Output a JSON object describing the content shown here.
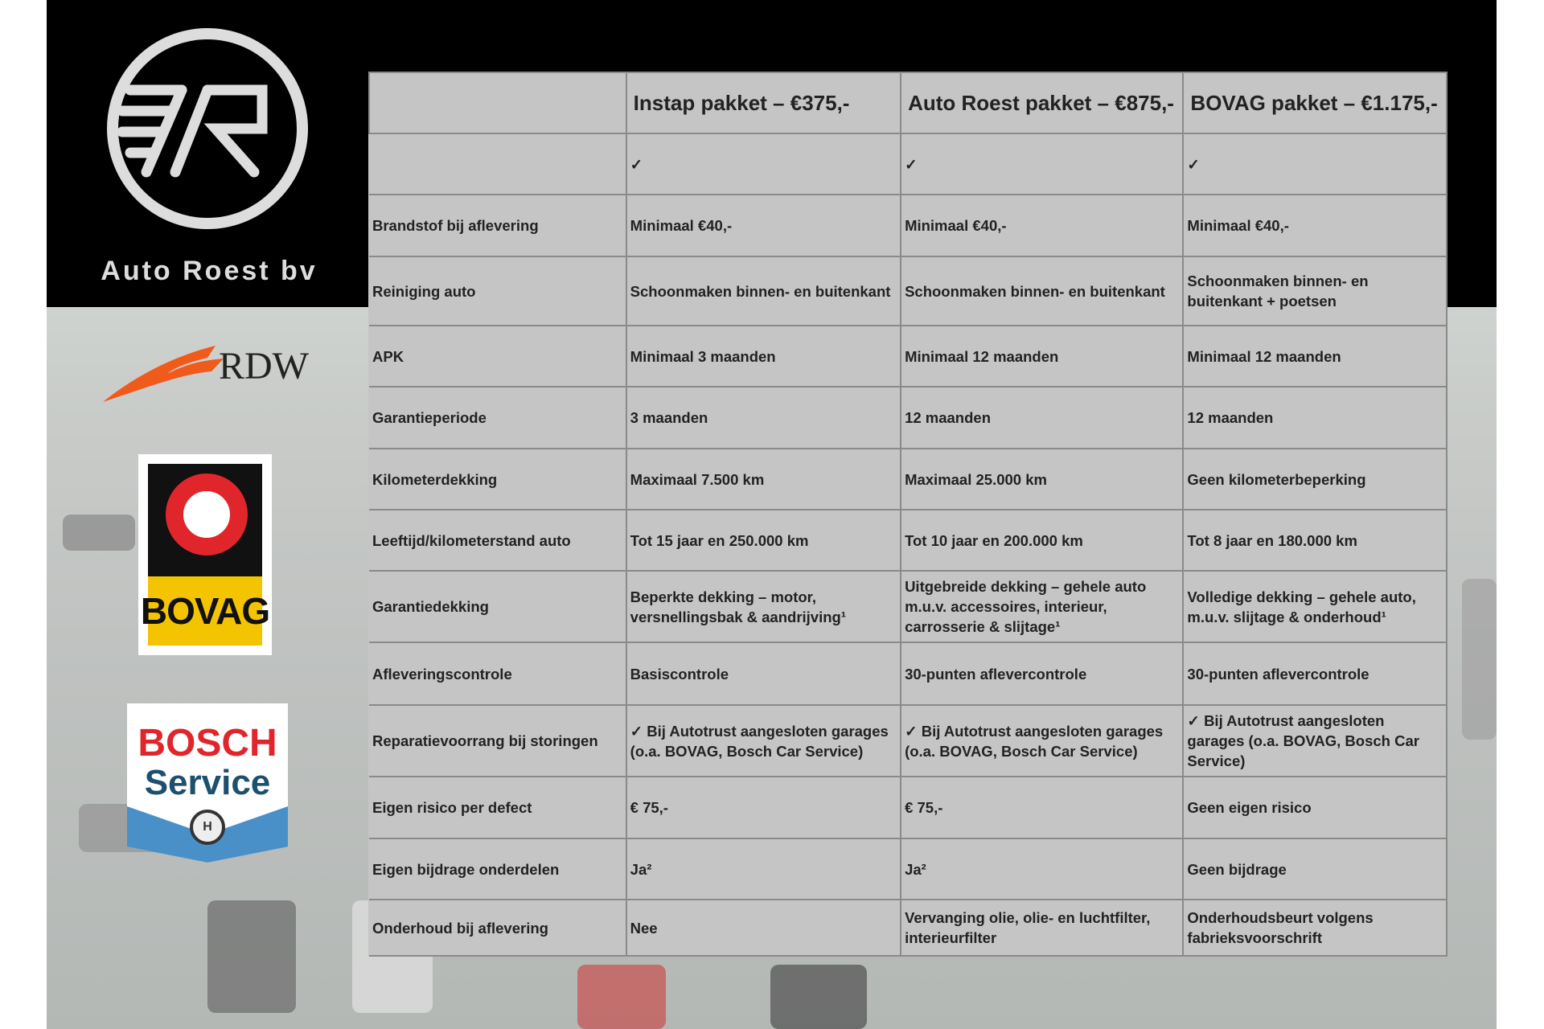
{
  "brand": {
    "name": "Auto Roest bv",
    "logo_icon": "ar-circle-logo"
  },
  "partners": [
    {
      "name": "RDW"
    },
    {
      "name": "BOVAG"
    },
    {
      "name": "BOSCH",
      "sub": "Service"
    }
  ],
  "table": {
    "headers": [
      "",
      "Instap pakket – €375,-",
      "Auto Roest pakket – €875,-",
      "BOVAG pakket – €1.175,-"
    ],
    "rows": [
      [
        "",
        "✓",
        "✓",
        "✓"
      ],
      [
        "Brandstof bij aflevering",
        "Minimaal €40,-",
        "Minimaal €40,-",
        "Minimaal €40,-"
      ],
      [
        "Reiniging auto",
        "Schoonmaken binnen- en buitenkant",
        "Schoonmaken binnen- en buitenkant",
        "Schoonmaken binnen- en buitenkant + poetsen"
      ],
      [
        "APK",
        "Minimaal 3 maanden",
        "Minimaal 12 maanden",
        "Minimaal 12 maanden"
      ],
      [
        "Garantieperiode",
        "3 maanden",
        "12 maanden",
        "12 maanden"
      ],
      [
        "Kilometerdekking",
        "Maximaal 7.500 km",
        "Maximaal 25.000 km",
        "Geen kilometerbeperking"
      ],
      [
        "Leeftijd/kilometerstand auto",
        "Tot 15 jaar en 250.000 km",
        "Tot 10 jaar en 200.000 km",
        "Tot 8 jaar en 180.000 km"
      ],
      [
        "Garantiedekking",
        "Beperkte dekking – motor, versnellingsbak & aandrijving¹",
        "Uitgebreide dekking – gehele auto m.u.v. accessoires, interieur, carrosserie & slijtage¹",
        "Volledige dekking – gehele auto, m.u.v. slijtage & onderhoud¹"
      ],
      [
        "Afleveringscontrole",
        "Basiscontrole",
        "30-punten aflevercontrole",
        "30-punten aflevercontrole"
      ],
      [
        "Reparatievoorrang bij storingen",
        "✓ Bij Autotrust aangesloten garages (o.a. BOVAG, Bosch Car Service)",
        "✓ Bij Autotrust aangesloten garages (o.a. BOVAG, Bosch Car Service)",
        "✓ Bij Autotrust aangesloten garages (o.a. BOVAG, Bosch Car Service)"
      ],
      [
        "Eigen risico per defect",
        "€ 75,-",
        "€ 75,-",
        "Geen eigen risico"
      ],
      [
        "Eigen bijdrage onderdelen",
        "Ja²",
        "Ja²",
        "Geen bijdrage"
      ],
      [
        "Onderhoud bij aflevering",
        "Nee",
        "Vervanging olie, olie- en luchtfilter, interieurfilter",
        "Onderhoudsbeurt volgens fabrieksvoorschrift"
      ]
    ]
  },
  "colors": {
    "table_bg": "#c5c5c5",
    "rdw_orange": "#f05a1a",
    "bovag_yellow": "#f5c400",
    "bosch_red": "#e0262b",
    "bosch_blue": "#4a90c8"
  }
}
